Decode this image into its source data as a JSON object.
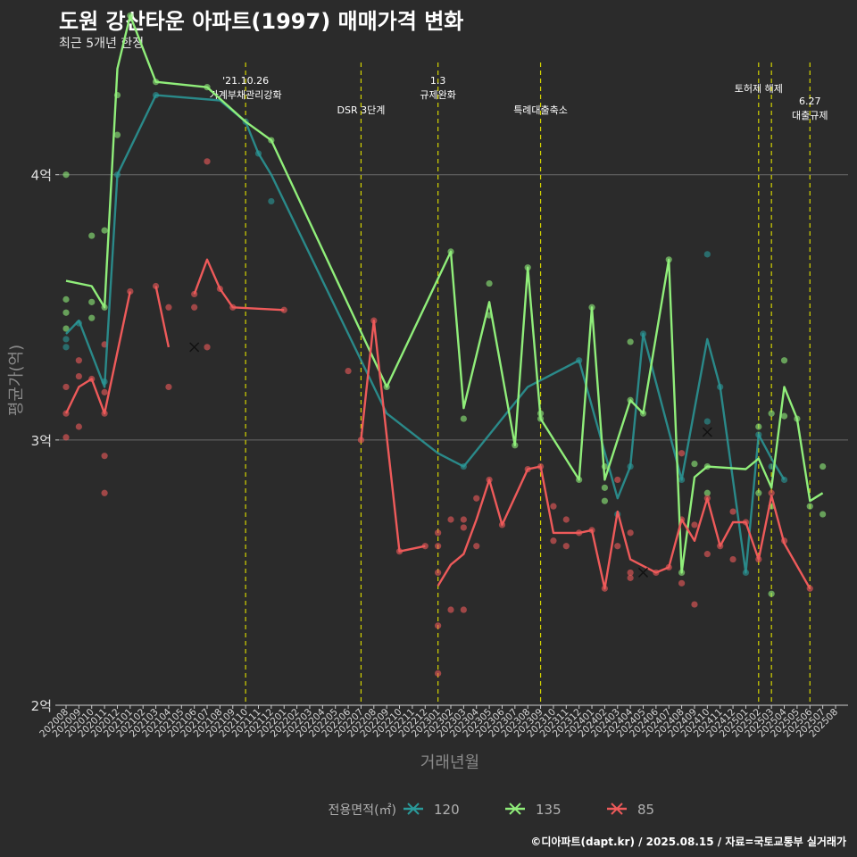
{
  "header": {
    "title": "도원 강산타운 아파트(1997) 매매가격 변화",
    "subtitle": "최근 5개년 한정"
  },
  "footer": {
    "caption": "©디아파트(dapt.kr) / 2025.08.15 / 자료=국토교통부 실거래가"
  },
  "colors": {
    "background": "#2b2b2b",
    "grid": "#6a6a6a",
    "event_line": "#d4d400",
    "series_120": "#2a9a9a",
    "series_135": "#90ee7a",
    "series_85": "#ee5a5a"
  },
  "chart_data": {
    "type": "line",
    "title": "도원 강산타운 아파트(1997) 매매가격 변화",
    "subtitle": "최근 5개년 한정",
    "xlabel": "거래년월",
    "ylabel": "평균가(억)",
    "ylim": [
      2.0,
      4.45
    ],
    "y_ticks": [
      2,
      3,
      4
    ],
    "y_tick_labels": [
      "2억",
      "3억",
      "4억"
    ],
    "grid": true,
    "legend_position": "bottom",
    "legend_title": "전용면적(㎡)",
    "x_categories": [
      "202008",
      "202009",
      "202010",
      "202011",
      "202012",
      "202101",
      "202102",
      "202103",
      "202104",
      "202105",
      "202106",
      "202107",
      "202108",
      "202109",
      "202110",
      "202111",
      "202112",
      "202201",
      "202202",
      "202203",
      "202204",
      "202205",
      "202206",
      "202207",
      "202208",
      "202209",
      "202210",
      "202211",
      "202212",
      "202301",
      "202302",
      "202303",
      "202304",
      "202305",
      "202306",
      "202307",
      "202308",
      "202309",
      "202310",
      "202311",
      "202312",
      "202401",
      "202402",
      "202403",
      "202404",
      "202405",
      "202406",
      "202407",
      "202408",
      "202409",
      "202410",
      "202411",
      "202412",
      "202501",
      "202502",
      "202503",
      "202504",
      "202505",
      "202506",
      "202507",
      "202508"
    ],
    "events": [
      {
        "x": "202110",
        "label_lines": [
          "'21.10.26",
          "가계부채관리강화"
        ]
      },
      {
        "x": "202207",
        "label_lines": [
          "DSR 3단계"
        ]
      },
      {
        "x": "202301",
        "label_lines": [
          "1.3",
          "규제완화"
        ]
      },
      {
        "x": "202309",
        "label_lines": [
          "특례대출축소"
        ]
      },
      {
        "x": "202502",
        "label_lines": [
          "토허제 해제"
        ]
      },
      {
        "x": "202503",
        "label_lines": []
      },
      {
        "x": "202506",
        "label_lines": [
          "6.27",
          "대출규제"
        ]
      }
    ],
    "series": [
      {
        "name": "120",
        "color": "#2a9a9a",
        "line": [
          [
            "202008",
            3.4
          ],
          [
            "202009",
            3.45
          ],
          [
            "202011",
            3.2
          ],
          [
            "202012",
            4.0
          ],
          [
            "202103",
            4.3
          ],
          [
            "202108",
            4.28
          ],
          [
            "202110",
            4.2
          ],
          [
            "202111",
            4.08
          ],
          [
            "202112",
            4.0
          ],
          [
            "202209",
            3.1
          ],
          [
            "202301",
            2.95
          ],
          [
            "202303",
            2.9
          ],
          [
            "202308",
            3.2
          ],
          [
            "202312",
            3.3
          ],
          [
            "202403",
            2.78
          ],
          [
            "202404",
            2.9
          ],
          [
            "202405",
            3.4
          ],
          [
            "202408",
            2.85
          ],
          [
            "202410",
            3.38
          ],
          [
            "202411",
            3.2
          ],
          [
            "202501",
            2.5
          ],
          [
            "202502",
            3.02
          ],
          [
            "202503",
            2.93
          ],
          [
            "202504",
            2.85
          ]
        ],
        "points": [
          [
            "202008",
            3.35
          ],
          [
            "202008",
            3.38
          ],
          [
            "202009",
            3.44
          ],
          [
            "202011",
            3.22
          ],
          [
            "202012",
            4.0
          ],
          [
            "202103",
            4.3
          ],
          [
            "202110",
            4.2
          ],
          [
            "202111",
            4.08
          ],
          [
            "202112",
            3.9
          ],
          [
            "202303",
            2.9
          ],
          [
            "202312",
            3.3
          ],
          [
            "202403",
            2.72
          ],
          [
            "202404",
            2.9
          ],
          [
            "202405",
            3.4
          ],
          [
            "202408",
            2.85
          ],
          [
            "202410",
            3.7
          ],
          [
            "202410",
            3.07
          ],
          [
            "202411",
            3.2
          ],
          [
            "202501",
            2.5
          ],
          [
            "202502",
            3.02
          ],
          [
            "202503",
            2.9
          ],
          [
            "202504",
            2.85
          ]
        ]
      },
      {
        "name": "135",
        "color": "#90ee7a",
        "line": [
          [
            "202008",
            3.6
          ],
          [
            "202010",
            3.58
          ],
          [
            "202011",
            3.5
          ],
          [
            "202012",
            4.4
          ],
          [
            "202101",
            4.6
          ],
          [
            "202103",
            4.35
          ],
          [
            "202107",
            4.33
          ],
          [
            "202110",
            4.2
          ],
          [
            "202112",
            4.13
          ],
          [
            "202209",
            3.2
          ],
          [
            "202302",
            3.71
          ],
          [
            "202303",
            3.12
          ],
          [
            "202305",
            3.52
          ],
          [
            "202307",
            2.98
          ],
          [
            "202308",
            3.65
          ],
          [
            "202309",
            3.08
          ],
          [
            "202312",
            2.85
          ],
          [
            "202401",
            3.5
          ],
          [
            "202402",
            2.85
          ],
          [
            "202404",
            3.15
          ],
          [
            "202405",
            3.1
          ],
          [
            "202407",
            3.68
          ],
          [
            "202408",
            2.5
          ],
          [
            "202409",
            2.86
          ],
          [
            "202410",
            2.9
          ],
          [
            "202501",
            2.89
          ],
          [
            "202502",
            2.93
          ],
          [
            "202503",
            2.82
          ],
          [
            "202504",
            3.2
          ],
          [
            "202505",
            3.08
          ],
          [
            "202506",
            2.77
          ],
          [
            "202507",
            2.8
          ]
        ],
        "points": [
          [
            "202008",
            4.0
          ],
          [
            "202008",
            3.53
          ],
          [
            "202008",
            3.48
          ],
          [
            "202008",
            3.42
          ],
          [
            "202010",
            3.77
          ],
          [
            "202010",
            3.52
          ],
          [
            "202010",
            3.46
          ],
          [
            "202011",
            3.79
          ],
          [
            "202011",
            3.5
          ],
          [
            "202012",
            4.7
          ],
          [
            "202012",
            4.3
          ],
          [
            "202012",
            4.15
          ],
          [
            "202101",
            4.6
          ],
          [
            "202103",
            4.35
          ],
          [
            "202107",
            4.33
          ],
          [
            "202112",
            4.13
          ],
          [
            "202209",
            3.2
          ],
          [
            "202302",
            3.71
          ],
          [
            "202303",
            3.08
          ],
          [
            "202305",
            3.59
          ],
          [
            "202305",
            3.47
          ],
          [
            "202307",
            2.98
          ],
          [
            "202308",
            3.65
          ],
          [
            "202309",
            3.1
          ],
          [
            "202309",
            3.08
          ],
          [
            "202312",
            2.85
          ],
          [
            "202401",
            3.5
          ],
          [
            "202402",
            2.82
          ],
          [
            "202402",
            2.9
          ],
          [
            "202402",
            2.77
          ],
          [
            "202404",
            3.37
          ],
          [
            "202404",
            3.15
          ],
          [
            "202405",
            3.1
          ],
          [
            "202407",
            3.68
          ],
          [
            "202408",
            2.5
          ],
          [
            "202409",
            2.91
          ],
          [
            "202410",
            2.9
          ],
          [
            "202410",
            2.8
          ],
          [
            "202502",
            3.05
          ],
          [
            "202502",
            2.8
          ],
          [
            "202503",
            3.1
          ],
          [
            "202503",
            2.75
          ],
          [
            "202503",
            2.42
          ],
          [
            "202504",
            3.3
          ],
          [
            "202504",
            3.09
          ],
          [
            "202505",
            3.08
          ],
          [
            "202506",
            2.75
          ],
          [
            "202507",
            2.9
          ],
          [
            "202507",
            2.72
          ]
        ]
      },
      {
        "name": "85",
        "color": "#ee5a5a",
        "line_segments": [
          [
            [
              "202008",
              3.1
            ],
            [
              "202009",
              3.2
            ],
            [
              "202010",
              3.23
            ],
            [
              "202011",
              3.1
            ],
            [
              "202101",
              3.56
            ]
          ],
          [
            [
              "202103",
              3.58
            ],
            [
              "202104",
              3.35
            ]
          ],
          [
            [
              "202106",
              3.55
            ],
            [
              "202107",
              3.68
            ],
            [
              "202108",
              3.57
            ],
            [
              "202109",
              3.5
            ],
            [
              "202201",
              3.49
            ]
          ],
          [
            [
              "202207",
              3.0
            ],
            [
              "202208",
              3.45
            ],
            [
              "202210",
              2.58
            ],
            [
              "202212",
              2.6
            ]
          ],
          [
            [
              "202301",
              2.45
            ],
            [
              "202302",
              2.53
            ],
            [
              "202303",
              2.57
            ],
            [
              "202304",
              2.7
            ],
            [
              "202305",
              2.85
            ],
            [
              "202306",
              2.68
            ],
            [
              "202308",
              2.89
            ],
            [
              "202309",
              2.9
            ],
            [
              "202310",
              2.65
            ],
            [
              "202312",
              2.65
            ],
            [
              "202401",
              2.66
            ],
            [
              "202402",
              2.44
            ],
            [
              "202403",
              2.73
            ],
            [
              "202404",
              2.55
            ],
            [
              "202406",
              2.5
            ],
            [
              "202407",
              2.52
            ],
            [
              "202408",
              2.7
            ],
            [
              "202409",
              2.62
            ],
            [
              "202410",
              2.78
            ],
            [
              "202411",
              2.6
            ],
            [
              "202412",
              2.69
            ],
            [
              "202501",
              2.69
            ],
            [
              "202502",
              2.55
            ],
            [
              "202503",
              2.79
            ],
            [
              "202504",
              2.61
            ],
            [
              "202506",
              2.44
            ]
          ]
        ],
        "points": [
          [
            "202008",
            3.2
          ],
          [
            "202008",
            3.1
          ],
          [
            "202008",
            3.01
          ],
          [
            "202009",
            3.3
          ],
          [
            "202009",
            3.24
          ],
          [
            "202009",
            3.05
          ],
          [
            "202010",
            3.23
          ],
          [
            "202011",
            3.36
          ],
          [
            "202011",
            3.18
          ],
          [
            "202011",
            3.1
          ],
          [
            "202011",
            2.94
          ],
          [
            "202011",
            2.8
          ],
          [
            "202101",
            3.56
          ],
          [
            "202103",
            3.58
          ],
          [
            "202104",
            3.5
          ],
          [
            "202104",
            3.2
          ],
          [
            "202106",
            3.55
          ],
          [
            "202106",
            3.5
          ],
          [
            "202107",
            4.05
          ],
          [
            "202107",
            3.35
          ],
          [
            "202108",
            3.57
          ],
          [
            "202109",
            3.5
          ],
          [
            "202201",
            3.49
          ],
          [
            "202206",
            3.26
          ],
          [
            "202207",
            3.0
          ],
          [
            "202208",
            3.45
          ],
          [
            "202210",
            2.58
          ],
          [
            "202212",
            2.6
          ],
          [
            "202301",
            2.12
          ],
          [
            "202301",
            2.3
          ],
          [
            "202301",
            2.5
          ],
          [
            "202301",
            2.6
          ],
          [
            "202301",
            2.65
          ],
          [
            "202302",
            2.7
          ],
          [
            "202302",
            2.36
          ],
          [
            "202303",
            2.7
          ],
          [
            "202303",
            2.67
          ],
          [
            "202303",
            2.36
          ],
          [
            "202304",
            2.78
          ],
          [
            "202304",
            2.6
          ],
          [
            "202305",
            2.85
          ],
          [
            "202306",
            2.68
          ],
          [
            "202308",
            2.89
          ],
          [
            "202309",
            2.9
          ],
          [
            "202310",
            2.75
          ],
          [
            "202310",
            2.62
          ],
          [
            "202311",
            2.7
          ],
          [
            "202311",
            2.6
          ],
          [
            "202312",
            2.65
          ],
          [
            "202401",
            2.66
          ],
          [
            "202402",
            2.44
          ],
          [
            "202403",
            2.85
          ],
          [
            "202403",
            2.6
          ],
          [
            "202404",
            2.65
          ],
          [
            "202404",
            2.5
          ],
          [
            "202404",
            2.48
          ],
          [
            "202406",
            2.5
          ],
          [
            "202407",
            2.52
          ],
          [
            "202408",
            2.95
          ],
          [
            "202408",
            2.7
          ],
          [
            "202408",
            2.46
          ],
          [
            "202409",
            2.68
          ],
          [
            "202409",
            2.38
          ],
          [
            "202410",
            2.78
          ],
          [
            "202410",
            2.57
          ],
          [
            "202411",
            2.6
          ],
          [
            "202412",
            2.73
          ],
          [
            "202412",
            2.55
          ],
          [
            "202501",
            2.69
          ],
          [
            "202502",
            2.55
          ],
          [
            "202503",
            2.8
          ],
          [
            "202504",
            2.62
          ],
          [
            "202506",
            2.44
          ]
        ]
      }
    ],
    "cancelled_markers": [
      [
        "202106",
        3.35
      ],
      [
        "202405",
        2.5
      ],
      [
        "202410",
        3.03
      ]
    ]
  }
}
